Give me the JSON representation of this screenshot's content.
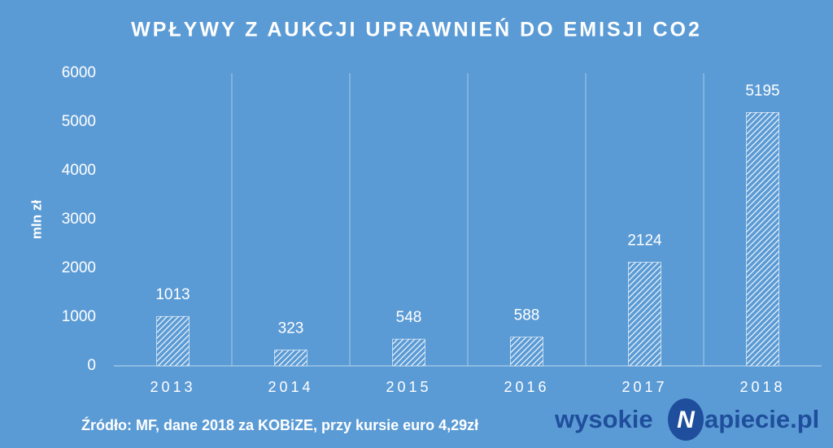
{
  "chart_data": {
    "type": "bar",
    "title": "WPŁYWY Z AUKCJI UPRAWNIEŃ DO EMISJI CO2",
    "y_label": "mln zł",
    "categories": [
      "2013",
      "2014",
      "2015",
      "2016",
      "2017",
      "2018"
    ],
    "values": [
      1013,
      323,
      548,
      588,
      2124,
      5195
    ],
    "color": "#ffffff",
    "ylim": [
      0,
      6000
    ],
    "yticks": [
      0,
      1000,
      2000,
      3000,
      4000,
      5000,
      6000
    ],
    "source": "Źródło: MF, dane 2018 za KOBiZE, przy kursie euro 4,29zł",
    "logo": [
      "wysokie",
      "N",
      "apiecie.pl"
    ]
  }
}
